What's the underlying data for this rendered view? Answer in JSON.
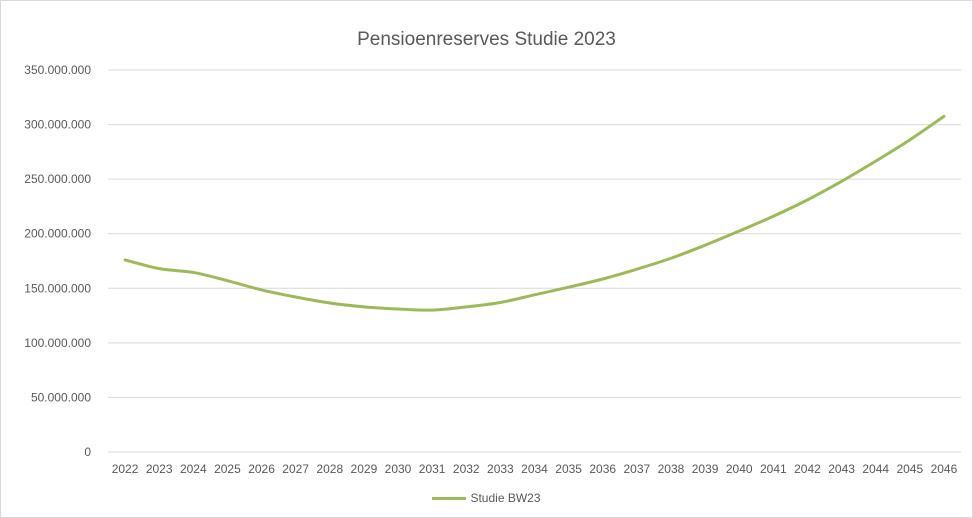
{
  "chart_data": {
    "type": "line",
    "title": "Pensioenreserves Studie 2023",
    "xlabel": "",
    "ylabel": "",
    "ylim": [
      0,
      350000000
    ],
    "yticks": [
      0,
      50000000,
      100000000,
      150000000,
      200000000,
      250000000,
      300000000,
      350000000
    ],
    "ytick_labels": [
      "0",
      "50.000.000",
      "100.000.000",
      "150.000.000",
      "200.000.000",
      "250.000.000",
      "300.000.000",
      "350.000.000"
    ],
    "grid": true,
    "legend_position": "bottom",
    "categories": [
      "2022",
      "2023",
      "2024",
      "2025",
      "2026",
      "2027",
      "2028",
      "2029",
      "2030",
      "2031",
      "2032",
      "2033",
      "2034",
      "2035",
      "2036",
      "2037",
      "2038",
      "2039",
      "2040",
      "2041",
      "2042",
      "2043",
      "2044",
      "2045",
      "2046"
    ],
    "series": [
      {
        "name": "Studie BW23",
        "color": "#9bbb59",
        "values": [
          176000000,
          168000000,
          164500000,
          157000000,
          148500000,
          142000000,
          136500000,
          133000000,
          131000000,
          130000000,
          133000000,
          137000000,
          144000000,
          151000000,
          158500000,
          167500000,
          177500000,
          189500000,
          202500000,
          216000000,
          231000000,
          248000000,
          266500000,
          286000000,
          307500000
        ]
      }
    ]
  }
}
